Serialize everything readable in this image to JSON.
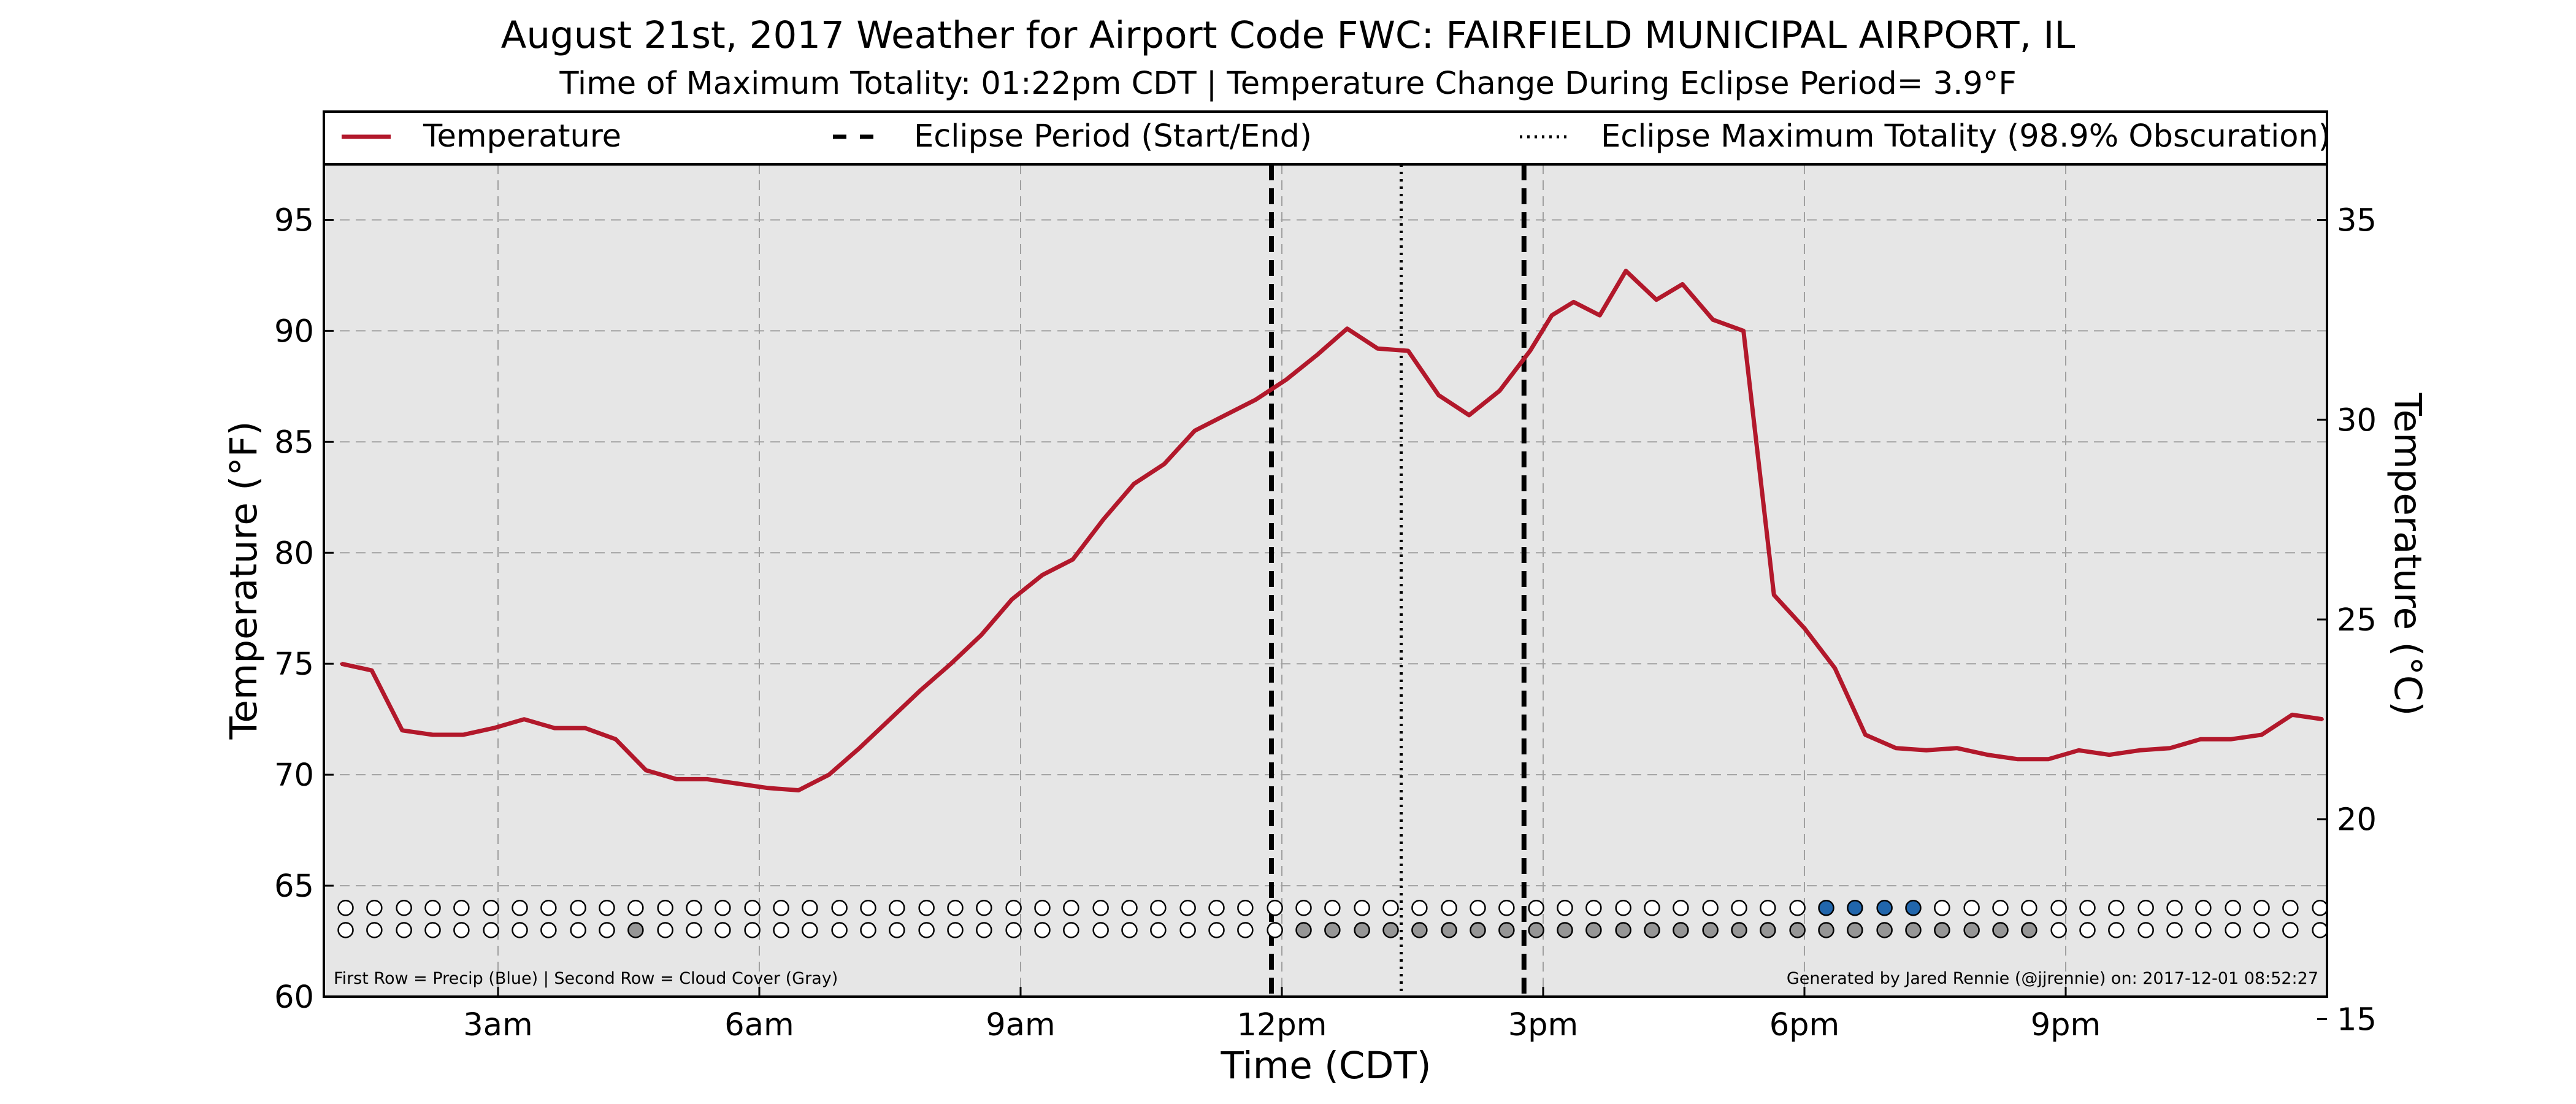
{
  "chart_data": {
    "type": "line",
    "title": "August 21st, 2017 Weather for Airport Code FWC: FAIRFIELD MUNICIPAL AIRPORT, IL",
    "subtitle": "Time of Maximum Totality: 01:22pm CDT | Temperature Change During Eclipse Period= 3.9$^\\circ$F",
    "subtitle_display": "Time of Maximum Totality: 01:22pm CDT | Temperature Change During Eclipse Period= 3.9°F",
    "xlabel": "Time (CDT)",
    "ylabel": "Temperature ($^\\circ$F)",
    "ylabel_display": "Temperature (°F)",
    "ylabel_right": "Temperature (°C)",
    "x_unit": "hours after midnight CDT",
    "xlim": [
      1.0,
      24.0
    ],
    "ylim": [
      60,
      97.5
    ],
    "ylim_right": [
      15.56,
      36.39
    ],
    "x_ticks": [
      {
        "x": 3,
        "label": "3am"
      },
      {
        "x": 6,
        "label": "6am"
      },
      {
        "x": 9,
        "label": "9am"
      },
      {
        "x": 12,
        "label": "12pm"
      },
      {
        "x": 15,
        "label": "3pm"
      },
      {
        "x": 18,
        "label": "6pm"
      },
      {
        "x": 21,
        "label": "9pm"
      }
    ],
    "y_ticks": [
      "60",
      "65",
      "70",
      "75",
      "80",
      "85",
      "90",
      "95"
    ],
    "y_ticks_right": [
      "15",
      "20",
      "25",
      "30",
      "35"
    ],
    "grid": true,
    "legend_position": "top",
    "legend": [
      {
        "label": "Temperature",
        "style": "solid",
        "color": "#b2182b"
      },
      {
        "label": "Eclipse Period (Start/End)",
        "style": "dashed",
        "color": "#000000"
      },
      {
        "label": "Eclipse Maximum Totality (98.9% Obscuration)",
        "style": "dotted",
        "color": "#000000"
      }
    ],
    "series": [
      {
        "name": "Temperature",
        "color": "#b2182b",
        "x": [
          1.2,
          1.55,
          1.9,
          2.25,
          2.6,
          2.95,
          3.3,
          3.65,
          4.0,
          4.35,
          4.7,
          5.05,
          5.4,
          5.75,
          6.1,
          6.45,
          6.8,
          7.15,
          7.5,
          7.85,
          8.2,
          8.55,
          8.9,
          9.25,
          9.6,
          9.95,
          10.3,
          10.65,
          11.0,
          11.35,
          11.7,
          12.05,
          12.4,
          12.75,
          13.1,
          13.45,
          13.8,
          14.15,
          14.5,
          14.85,
          15.1,
          15.35,
          15.65,
          15.95,
          16.3,
          16.6,
          16.95,
          17.3,
          17.65,
          18.0,
          18.35,
          18.7,
          19.05,
          19.4,
          19.75,
          20.1,
          20.45,
          20.8,
          21.15,
          21.5,
          21.85,
          22.2,
          22.55,
          22.9,
          23.25,
          23.6,
          23.95
        ],
        "y": [
          75.0,
          74.7,
          72.0,
          71.8,
          71.8,
          72.1,
          72.5,
          72.1,
          72.1,
          71.6,
          70.2,
          69.8,
          69.8,
          69.6,
          69.4,
          69.3,
          70.0,
          71.2,
          72.5,
          73.8,
          75.0,
          76.3,
          77.9,
          79.0,
          79.7,
          81.5,
          83.1,
          84.0,
          85.5,
          86.2,
          86.9,
          87.8,
          88.9,
          90.1,
          89.2,
          89.1,
          87.1,
          86.2,
          87.3,
          89.1,
          90.7,
          91.3,
          90.7,
          92.7,
          91.4,
          92.1,
          90.5,
          90.0,
          78.1,
          76.6,
          74.8,
          71.8,
          71.2,
          71.1,
          71.2,
          70.9,
          70.7,
          70.7,
          71.1,
          70.9,
          71.1,
          71.2,
          71.6,
          71.6,
          71.8,
          72.7,
          72.5
        ]
      }
    ],
    "eclipse": {
      "start_x": 11.88,
      "max_totality_x": 13.37,
      "end_x": 14.78
    },
    "marker_rows": {
      "x": [
        1.25,
        1.58,
        1.92,
        2.25,
        2.58,
        2.92,
        3.25,
        3.58,
        3.92,
        4.25,
        4.58,
        4.92,
        5.25,
        5.58,
        5.92,
        6.25,
        6.58,
        6.92,
        7.25,
        7.58,
        7.92,
        8.25,
        8.58,
        8.92,
        9.25,
        9.58,
        9.92,
        10.25,
        10.58,
        10.92,
        11.25,
        11.58,
        11.92,
        12.25,
        12.58,
        12.92,
        13.25,
        13.58,
        13.92,
        14.25,
        14.58,
        14.92,
        15.25,
        15.58,
        15.92,
        16.25,
        16.58,
        16.92,
        17.25,
        17.58,
        17.92,
        18.25,
        18.58,
        18.92,
        19.25,
        19.58,
        19.92,
        20.25,
        20.58,
        20.92,
        21.25,
        21.58,
        21.92,
        22.25,
        22.58,
        22.92,
        23.25,
        23.58,
        23.92
      ],
      "precip_y": 64,
      "cloud_y": 63,
      "precip_blue_indices": [
        51,
        52,
        53,
        54
      ],
      "cloud_gray_indices": [
        10,
        33,
        34,
        35,
        36,
        37,
        38,
        39,
        40,
        41,
        42,
        43,
        44,
        45,
        46,
        47,
        48,
        49,
        50,
        51,
        52,
        53,
        54,
        55,
        56,
        57,
        58
      ],
      "clear_color": "#ffffff",
      "precip_color": "#2166ac",
      "cloud_color": "#969696"
    },
    "footer_left": "First Row = Precip (Blue) | Second Row = Cloud Cover (Gray)",
    "footer_right": "Generated by Jared Rennie (@jjrennie) on: 2017-12-01 08:52:27"
  }
}
